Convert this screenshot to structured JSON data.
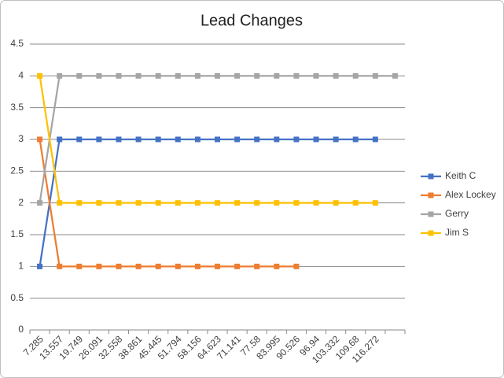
{
  "chart_data": {
    "type": "line",
    "title": "Lead Changes",
    "categories": [
      "7.285",
      "13.557",
      "19.749",
      "26.091",
      "32.558",
      "38.861",
      "45.445",
      "51.794",
      "58.156",
      "64.623",
      "71.141",
      "77.58",
      "83.995",
      "90.526",
      "96.94",
      "103.332",
      "109.68",
      "116.272",
      null
    ],
    "series": [
      {
        "name": "Keith C",
        "color": "#4472c4",
        "values": [
          1,
          3,
          3,
          3,
          3,
          3,
          3,
          3,
          3,
          3,
          3,
          3,
          3,
          3,
          3,
          3,
          3,
          3,
          null
        ]
      },
      {
        "name": "Alex Lockey",
        "color": "#ed7d31",
        "values": [
          3,
          1,
          1,
          1,
          1,
          1,
          1,
          1,
          1,
          1,
          1,
          1,
          1,
          1,
          null,
          null,
          null,
          null,
          null
        ]
      },
      {
        "name": "Gerry",
        "color": "#a5a5a5",
        "values": [
          2,
          4,
          4,
          4,
          4,
          4,
          4,
          4,
          4,
          4,
          4,
          4,
          4,
          4,
          4,
          4,
          4,
          4,
          4
        ]
      },
      {
        "name": "Jim S",
        "color": "#ffc000",
        "values": [
          4,
          2,
          2,
          2,
          2,
          2,
          2,
          2,
          2,
          2,
          2,
          2,
          2,
          2,
          2,
          2,
          2,
          2,
          null
        ]
      }
    ],
    "ylim": [
      0,
      4.5
    ],
    "yticks": [
      0,
      0.5,
      1,
      1.5,
      2,
      2.5,
      3,
      3.5,
      4,
      4.5
    ],
    "grid": true,
    "legend": "right"
  }
}
